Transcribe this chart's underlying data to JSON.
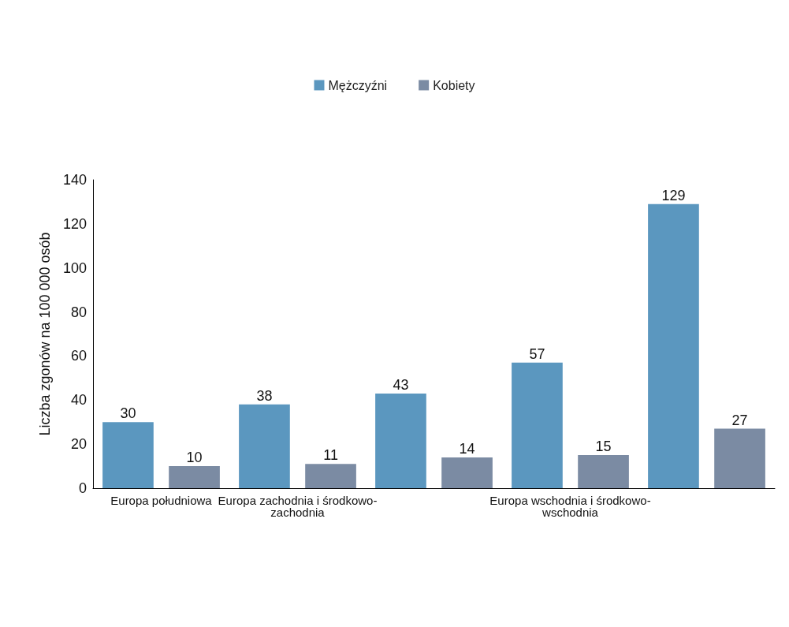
{
  "chart_data": {
    "type": "bar",
    "ylabel": "Liczba zgonów na 100 000 osób",
    "categories": [
      "Europa południowa",
      "Europa zachodnia i środkowo-zachodnia",
      null,
      "Europa wschodnia i środkowo-wschodnia",
      null
    ],
    "series": [
      {
        "name": "Mężczyźni",
        "color": "#5b97bf",
        "values": [
          30,
          38,
          43,
          57,
          129
        ]
      },
      {
        "name": "Kobiety",
        "color": "#7b8ba3",
        "values": [
          10,
          11,
          14,
          15,
          27
        ]
      }
    ],
    "ylim": [
      0,
      140
    ],
    "yticks": [
      0,
      20,
      40,
      60,
      80,
      100,
      120,
      140
    ],
    "grid": false,
    "legend": "top",
    "data_labels": true
  }
}
